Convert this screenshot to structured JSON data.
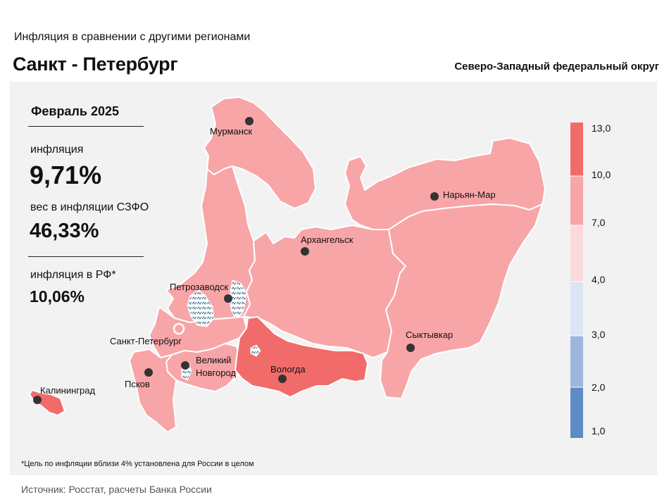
{
  "header": {
    "subtitle": "Инфляция  в сравнении  с другими  регионами",
    "title": "Санкт - Петербург",
    "district": "Северо-Западный федеральный округ"
  },
  "stats": {
    "period": "Февраль 2025",
    "inflation_label": "инфляция",
    "inflation_value": "9,71%",
    "weight_label": "вес в инфляции  СЗФО",
    "weight_value": "46,33%",
    "rf_label": "инфляция  в РФ*",
    "rf_value": "10,06%"
  },
  "legend": {
    "ticks": [
      "13,0",
      "10,0",
      "7,0",
      "4,0",
      "3,0",
      "2,0",
      "1,0"
    ],
    "colors": [
      "#f26b6b",
      "#f8a5a8",
      "#fadadd",
      "#dbe5f4",
      "#9db7dc",
      "#5e8ac6"
    ]
  },
  "cities": [
    {
      "name": "Мурманск"
    },
    {
      "name": "Нарьян-Мар"
    },
    {
      "name": "Архангельск"
    },
    {
      "name": "Петрозаводск"
    },
    {
      "name": "Санкт-Петербург"
    },
    {
      "name": "Сыктывкар"
    },
    {
      "name": "Великий"
    },
    {
      "name": "Новгород"
    },
    {
      "name": "Вологда"
    },
    {
      "name": "Псков"
    },
    {
      "name": "Калининград"
    }
  ],
  "region_colors": {
    "medium": "#f8a5a8",
    "high": "#f26b6b"
  },
  "footnote": "*Цель по инфляции вблизи 4% установлена для России в целом",
  "source": "Источник:  Росстат,  расчеты Банка  России"
}
